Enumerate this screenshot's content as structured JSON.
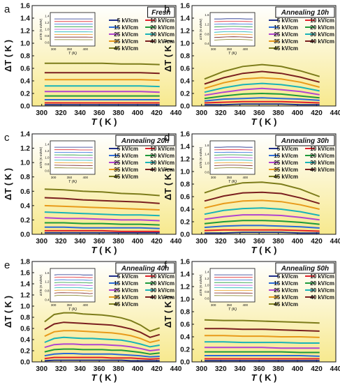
{
  "figure": {
    "field_labels": [
      "5 kV/cm",
      "10 kV/cm",
      "15 kV/cm",
      "20 kV/cm",
      "25 kV/cm",
      "30 kV/cm",
      "35 kV/cm",
      "40 kV/cm",
      "45 kV/cm"
    ],
    "colors": [
      "#1f2f8a",
      "#e0202a",
      "#2a6ad8",
      "#1e9a3a",
      "#b044d0",
      "#19b3b7",
      "#e89a1a",
      "#7a1f1f",
      "#7c7c1a"
    ],
    "background": {
      "top": "#ffffff",
      "bottom": "#f7e98e"
    },
    "x_label": "T",
    "x_unit": "( K )",
    "y_label": "ΔT",
    "y_unit": "( K )",
    "inset_y_label": "ΔT/E (K·m/MV)",
    "inset_x_label": "T (K)"
  },
  "chart_data": [
    {
      "type": "line",
      "panel": "a",
      "annotation": "Fresh",
      "x": [
        303,
        323,
        343,
        363,
        383,
        403,
        423
      ],
      "xlim": [
        290,
        440
      ],
      "ylim": [
        0,
        1.6
      ],
      "xticks": [
        300,
        320,
        340,
        360,
        380,
        400,
        420,
        440
      ],
      "yticks": [
        0.0,
        0.2,
        0.4,
        0.6,
        0.8,
        1.0,
        1.2,
        1.4,
        1.6
      ],
      "series": [
        {
          "name": "5 kV/cm",
          "values": [
            0.02,
            0.02,
            0.02,
            0.02,
            0.02,
            0.02,
            0.02
          ]
        },
        {
          "name": "10 kV/cm",
          "values": [
            0.05,
            0.05,
            0.05,
            0.05,
            0.05,
            0.05,
            0.05
          ]
        },
        {
          "name": "15 kV/cm",
          "values": [
            0.1,
            0.1,
            0.1,
            0.1,
            0.1,
            0.1,
            0.1
          ]
        },
        {
          "name": "20 kV/cm",
          "values": [
            0.16,
            0.16,
            0.16,
            0.16,
            0.16,
            0.16,
            0.16
          ]
        },
        {
          "name": "25 kV/cm",
          "values": [
            0.23,
            0.23,
            0.23,
            0.23,
            0.23,
            0.23,
            0.22
          ]
        },
        {
          "name": "30 kV/cm",
          "values": [
            0.32,
            0.32,
            0.32,
            0.32,
            0.32,
            0.32,
            0.31
          ]
        },
        {
          "name": "35 kV/cm",
          "values": [
            0.42,
            0.42,
            0.42,
            0.42,
            0.42,
            0.42,
            0.41
          ]
        },
        {
          "name": "40 kV/cm",
          "values": [
            0.53,
            0.53,
            0.53,
            0.53,
            0.53,
            0.53,
            0.52
          ]
        },
        {
          "name": "45 kV/cm",
          "values": [
            0.68,
            0.68,
            0.68,
            0.68,
            0.67,
            0.67,
            0.66
          ]
        }
      ],
      "inset": {
        "xticks": [
          300,
          350,
          400
        ],
        "yticks": [
          0.6,
          0.8,
          1.0,
          1.2,
          1.4
        ],
        "ylim": [
          0.5,
          1.5
        ],
        "xlim": [
          290,
          430
        ]
      }
    },
    {
      "type": "line",
      "panel": "b",
      "annotation": "Annealing 10h",
      "x": [
        303,
        323,
        343,
        363,
        383,
        403,
        423
      ],
      "xlim": [
        290,
        440
      ],
      "ylim": [
        0,
        1.6
      ],
      "xticks": [
        300,
        320,
        340,
        360,
        380,
        400,
        420,
        440
      ],
      "yticks": [
        0.0,
        0.2,
        0.4,
        0.6,
        0.8,
        1.0,
        1.2,
        1.4,
        1.6
      ],
      "series": [
        {
          "name": "5 kV/cm",
          "values": [
            0.02,
            0.02,
            0.03,
            0.03,
            0.03,
            0.02,
            0.02
          ]
        },
        {
          "name": "10 kV/cm",
          "values": [
            0.05,
            0.06,
            0.07,
            0.07,
            0.07,
            0.06,
            0.05
          ]
        },
        {
          "name": "15 kV/cm",
          "values": [
            0.08,
            0.11,
            0.12,
            0.13,
            0.12,
            0.11,
            0.09
          ]
        },
        {
          "name": "20 kV/cm",
          "values": [
            0.12,
            0.16,
            0.19,
            0.2,
            0.19,
            0.16,
            0.13
          ]
        },
        {
          "name": "25 kV/cm",
          "values": [
            0.17,
            0.22,
            0.26,
            0.28,
            0.26,
            0.23,
            0.18
          ]
        },
        {
          "name": "30 kV/cm",
          "values": [
            0.22,
            0.29,
            0.34,
            0.36,
            0.34,
            0.3,
            0.24
          ]
        },
        {
          "name": "35 kV/cm",
          "values": [
            0.28,
            0.37,
            0.43,
            0.45,
            0.43,
            0.38,
            0.3
          ]
        },
        {
          "name": "40 kV/cm",
          "values": [
            0.35,
            0.45,
            0.52,
            0.55,
            0.52,
            0.46,
            0.38
          ]
        },
        {
          "name": "45 kV/cm",
          "values": [
            0.43,
            0.55,
            0.63,
            0.66,
            0.63,
            0.56,
            0.47
          ]
        }
      ],
      "inset": {
        "xticks": [
          300,
          350,
          400
        ],
        "yticks": [
          0.4,
          0.8,
          1.2,
          1.6
        ],
        "ylim": [
          0.3,
          1.7
        ],
        "xlim": [
          290,
          430
        ]
      }
    },
    {
      "type": "line",
      "panel": "c",
      "annotation": "Annealing 20h",
      "x": [
        303,
        323,
        343,
        363,
        383,
        403,
        423
      ],
      "xlim": [
        290,
        440
      ],
      "ylim": [
        0,
        1.4
      ],
      "xticks": [
        300,
        320,
        340,
        360,
        380,
        400,
        420,
        440
      ],
      "yticks": [
        0.0,
        0.2,
        0.4,
        0.6,
        0.8,
        1.0,
        1.2,
        1.4
      ],
      "series": [
        {
          "name": "5 kV/cm",
          "values": [
            0.02,
            0.02,
            0.02,
            0.02,
            0.02,
            0.02,
            0.02
          ]
        },
        {
          "name": "10 kV/cm",
          "values": [
            0.05,
            0.05,
            0.05,
            0.05,
            0.04,
            0.04,
            0.04
          ]
        },
        {
          "name": "15 kV/cm",
          "values": [
            0.1,
            0.1,
            0.09,
            0.09,
            0.09,
            0.09,
            0.08
          ]
        },
        {
          "name": "20 kV/cm",
          "values": [
            0.16,
            0.16,
            0.15,
            0.15,
            0.14,
            0.14,
            0.13
          ]
        },
        {
          "name": "25 kV/cm",
          "values": [
            0.23,
            0.22,
            0.22,
            0.21,
            0.2,
            0.2,
            0.19
          ]
        },
        {
          "name": "30 kV/cm",
          "values": [
            0.31,
            0.3,
            0.29,
            0.28,
            0.27,
            0.27,
            0.26
          ]
        },
        {
          "name": "35 kV/cm",
          "values": [
            0.4,
            0.39,
            0.38,
            0.37,
            0.36,
            0.35,
            0.34
          ]
        },
        {
          "name": "40 kV/cm",
          "values": [
            0.51,
            0.5,
            0.48,
            0.47,
            0.46,
            0.45,
            0.43
          ]
        },
        {
          "name": "45 kV/cm",
          "values": [
            0.63,
            0.62,
            0.6,
            0.59,
            0.57,
            0.56,
            0.54
          ]
        }
      ],
      "inset": {
        "xticks": [
          300,
          350,
          400
        ],
        "yticks": [
          0.6,
          0.8,
          1.0,
          1.2,
          1.4
        ],
        "ylim": [
          0.5,
          1.5
        ],
        "xlim": [
          290,
          430
        ]
      }
    },
    {
      "type": "line",
      "panel": "d",
      "annotation": "Annealing 30h",
      "x": [
        303,
        323,
        343,
        363,
        383,
        403,
        423
      ],
      "xlim": [
        290,
        440
      ],
      "ylim": [
        0,
        1.6
      ],
      "xticks": [
        300,
        320,
        340,
        360,
        380,
        400,
        420,
        440
      ],
      "yticks": [
        0.0,
        0.2,
        0.4,
        0.6,
        0.8,
        1.0,
        1.2,
        1.4,
        1.6
      ],
      "series": [
        {
          "name": "5 kV/cm",
          "values": [
            0.02,
            0.02,
            0.03,
            0.03,
            0.03,
            0.02,
            0.02
          ]
        },
        {
          "name": "10 kV/cm",
          "values": [
            0.06,
            0.07,
            0.07,
            0.07,
            0.07,
            0.06,
            0.05
          ]
        },
        {
          "name": "15 kV/cm",
          "values": [
            0.11,
            0.13,
            0.14,
            0.14,
            0.13,
            0.12,
            0.1
          ]
        },
        {
          "name": "20 kV/cm",
          "values": [
            0.17,
            0.2,
            0.22,
            0.22,
            0.21,
            0.19,
            0.16
          ]
        },
        {
          "name": "25 kV/cm",
          "values": [
            0.24,
            0.28,
            0.31,
            0.31,
            0.3,
            0.27,
            0.23
          ]
        },
        {
          "name": "30 kV/cm",
          "values": [
            0.32,
            0.38,
            0.41,
            0.42,
            0.4,
            0.36,
            0.3
          ]
        },
        {
          "name": "35 kV/cm",
          "values": [
            0.42,
            0.49,
            0.53,
            0.54,
            0.52,
            0.47,
            0.4
          ]
        },
        {
          "name": "40 kV/cm",
          "values": [
            0.53,
            0.61,
            0.66,
            0.67,
            0.65,
            0.58,
            0.49
          ]
        },
        {
          "name": "45 kV/cm",
          "values": [
            0.66,
            0.76,
            0.82,
            0.83,
            0.8,
            0.72,
            0.6
          ]
        }
      ],
      "inset": {
        "xticks": [
          300,
          350,
          400
        ],
        "yticks": [
          0.6,
          1.0,
          1.4,
          1.8
        ],
        "ylim": [
          0.5,
          2.0
        ],
        "xlim": [
          290,
          430
        ]
      }
    },
    {
      "type": "line",
      "panel": "e",
      "annotation": "Annealing 40h",
      "x": [
        303,
        313,
        323,
        333,
        343,
        353,
        363,
        373,
        383,
        393,
        403,
        413,
        423
      ],
      "xlim": [
        290,
        440
      ],
      "ylim": [
        0,
        1.8
      ],
      "xticks": [
        300,
        320,
        340,
        360,
        380,
        400,
        420,
        440
      ],
      "yticks": [
        0.0,
        0.2,
        0.4,
        0.6,
        0.8,
        1.0,
        1.2,
        1.4,
        1.6,
        1.8
      ],
      "series": [
        {
          "name": "5 kV/cm",
          "values": [
            0.02,
            0.03,
            0.03,
            0.03,
            0.03,
            0.03,
            0.03,
            0.03,
            0.03,
            0.02,
            0.02,
            0.02,
            0.02
          ]
        },
        {
          "name": "10 kV/cm",
          "values": [
            0.06,
            0.08,
            0.08,
            0.08,
            0.08,
            0.08,
            0.08,
            0.07,
            0.07,
            0.07,
            0.06,
            0.05,
            0.06
          ]
        },
        {
          "name": "15 kV/cm",
          "values": [
            0.11,
            0.14,
            0.15,
            0.15,
            0.14,
            0.14,
            0.14,
            0.14,
            0.13,
            0.12,
            0.11,
            0.09,
            0.1
          ]
        },
        {
          "name": "20 kV/cm",
          "values": [
            0.18,
            0.22,
            0.23,
            0.23,
            0.22,
            0.22,
            0.22,
            0.21,
            0.21,
            0.19,
            0.17,
            0.14,
            0.16
          ]
        },
        {
          "name": "25 kV/cm",
          "values": [
            0.26,
            0.31,
            0.32,
            0.32,
            0.31,
            0.31,
            0.31,
            0.3,
            0.29,
            0.27,
            0.24,
            0.2,
            0.22
          ]
        },
        {
          "name": "30 kV/cm",
          "values": [
            0.35,
            0.42,
            0.44,
            0.43,
            0.42,
            0.42,
            0.41,
            0.4,
            0.39,
            0.36,
            0.32,
            0.27,
            0.3
          ]
        },
        {
          "name": "35 kV/cm",
          "values": [
            0.46,
            0.54,
            0.56,
            0.56,
            0.55,
            0.54,
            0.53,
            0.52,
            0.5,
            0.47,
            0.42,
            0.35,
            0.39
          ]
        },
        {
          "name": "40 kV/cm",
          "values": [
            0.58,
            0.68,
            0.71,
            0.7,
            0.69,
            0.68,
            0.67,
            0.66,
            0.63,
            0.59,
            0.53,
            0.44,
            0.49
          ]
        },
        {
          "name": "45 kV/cm",
          "values": [
            0.72,
            0.85,
            0.88,
            0.88,
            0.86,
            0.85,
            0.84,
            0.82,
            0.79,
            0.74,
            0.66,
            0.55,
            0.61
          ]
        }
      ],
      "inset": {
        "xticks": [
          300,
          350,
          400
        ],
        "yticks": [
          0.4,
          0.8,
          1.2,
          1.6
        ],
        "ylim": [
          0.3,
          1.8
        ],
        "xlim": [
          290,
          430
        ]
      }
    },
    {
      "type": "line",
      "panel": "f",
      "annotation": "Annealing 50h",
      "x": [
        303,
        323,
        343,
        363,
        383,
        403,
        423
      ],
      "xlim": [
        290,
        440
      ],
      "ylim": [
        0,
        1.6
      ],
      "xticks": [
        300,
        320,
        340,
        360,
        380,
        400,
        420,
        440
      ],
      "yticks": [
        0.0,
        0.2,
        0.4,
        0.6,
        0.8,
        1.0,
        1.2,
        1.4,
        1.6
      ],
      "series": [
        {
          "name": "5 kV/cm",
          "values": [
            0.02,
            0.02,
            0.02,
            0.02,
            0.02,
            0.02,
            0.02
          ]
        },
        {
          "name": "10 kV/cm",
          "values": [
            0.05,
            0.05,
            0.05,
            0.05,
            0.05,
            0.05,
            0.05
          ]
        },
        {
          "name": "15 kV/cm",
          "values": [
            0.1,
            0.1,
            0.1,
            0.1,
            0.1,
            0.1,
            0.09
          ]
        },
        {
          "name": "20 kV/cm",
          "values": [
            0.16,
            0.16,
            0.16,
            0.16,
            0.16,
            0.15,
            0.15
          ]
        },
        {
          "name": "25 kV/cm",
          "values": [
            0.23,
            0.23,
            0.23,
            0.23,
            0.22,
            0.22,
            0.22
          ]
        },
        {
          "name": "30 kV/cm",
          "values": [
            0.32,
            0.32,
            0.31,
            0.31,
            0.31,
            0.3,
            0.3
          ]
        },
        {
          "name": "35 kV/cm",
          "values": [
            0.42,
            0.42,
            0.41,
            0.41,
            0.4,
            0.4,
            0.39
          ]
        },
        {
          "name": "40 kV/cm",
          "values": [
            0.53,
            0.53,
            0.52,
            0.52,
            0.51,
            0.5,
            0.49
          ]
        },
        {
          "name": "45 kV/cm",
          "values": [
            0.67,
            0.66,
            0.66,
            0.65,
            0.64,
            0.63,
            0.62
          ]
        }
      ],
      "inset": {
        "xticks": [
          300,
          350,
          400
        ],
        "yticks": [
          0.6,
          0.8,
          1.0,
          1.2,
          1.4
        ],
        "ylim": [
          0.5,
          1.5
        ],
        "xlim": [
          290,
          430
        ]
      }
    }
  ]
}
